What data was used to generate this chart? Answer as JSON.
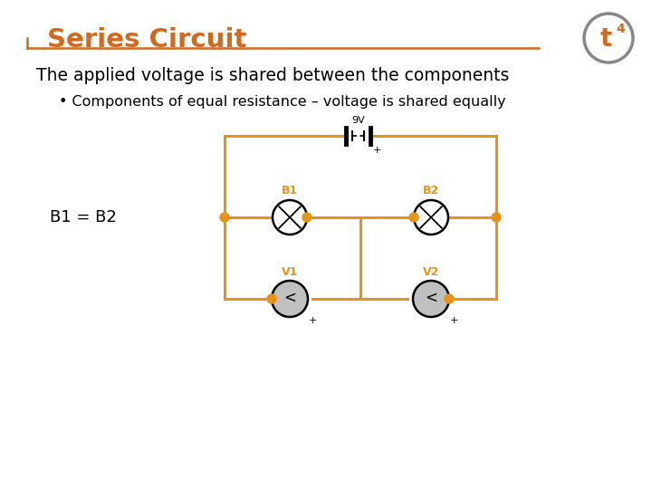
{
  "title": "Series Circuit",
  "title_color": "#D2691E",
  "bg_color": "#FFFFFF",
  "text_color": "#000000",
  "subtitle": "The applied voltage is shared between the components",
  "bullet": "• Components of equal resistance – voltage is shared equally",
  "label_b1b2": "B1 = B2",
  "circuit_orange": "#E8921A",
  "node_color": "#E8921A",
  "voltmeter_fill": "#C0C0C0",
  "battery_label": "9V",
  "b1_label": "B1",
  "b2_label": "B2",
  "v1_label": "V1",
  "v2_label": "V2",
  "logo_gray": "#888888"
}
